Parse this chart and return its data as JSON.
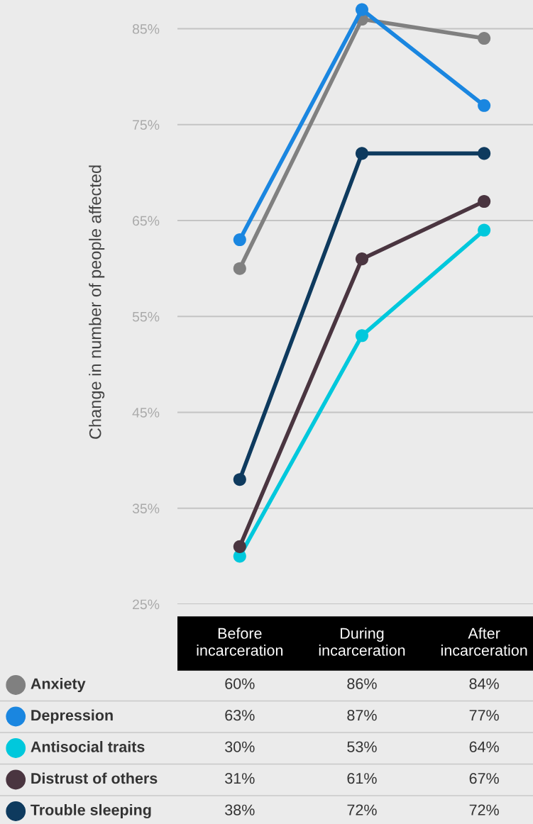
{
  "chart_data": {
    "type": "line",
    "ylabel": "Change in number of people affected",
    "categories": [
      "Before incarceration",
      "During incarceration",
      "After incarceration"
    ],
    "series": [
      {
        "name": "Anxiety",
        "color": "#808080",
        "values": [
          60,
          86,
          84
        ],
        "value_labels": [
          "60%",
          "86%",
          "84%"
        ]
      },
      {
        "name": "Depression",
        "color": "#1a86e0",
        "values": [
          63,
          87,
          77
        ],
        "value_labels": [
          "63%",
          "87%",
          "77%"
        ]
      },
      {
        "name": "Antisocial traits",
        "color": "#00c8dc",
        "values": [
          30,
          53,
          64
        ],
        "value_labels": [
          "30%",
          "53%",
          "64%"
        ]
      },
      {
        "name": "Distrust of others",
        "color": "#4a3540",
        "values": [
          31,
          61,
          67
        ],
        "value_labels": [
          "31%",
          "61%",
          "67%"
        ]
      },
      {
        "name": "Trouble sleeping",
        "color": "#0e3a5e",
        "values": [
          38,
          72,
          72
        ],
        "value_labels": [
          "38%",
          "72%",
          "72%"
        ]
      }
    ],
    "ylim": [
      25,
      88
    ],
    "yticks": [
      {
        "value": 25,
        "label": "25%"
      },
      {
        "value": 35,
        "label": "35%"
      },
      {
        "value": 45,
        "label": "45%"
      },
      {
        "value": 55,
        "label": "55%"
      },
      {
        "value": 65,
        "label": "65%"
      },
      {
        "value": 75,
        "label": "75%"
      },
      {
        "value": 85,
        "label": "85%"
      }
    ],
    "grid": "y",
    "legend": "bottom",
    "marker": "circle",
    "line_style": "solid"
  }
}
